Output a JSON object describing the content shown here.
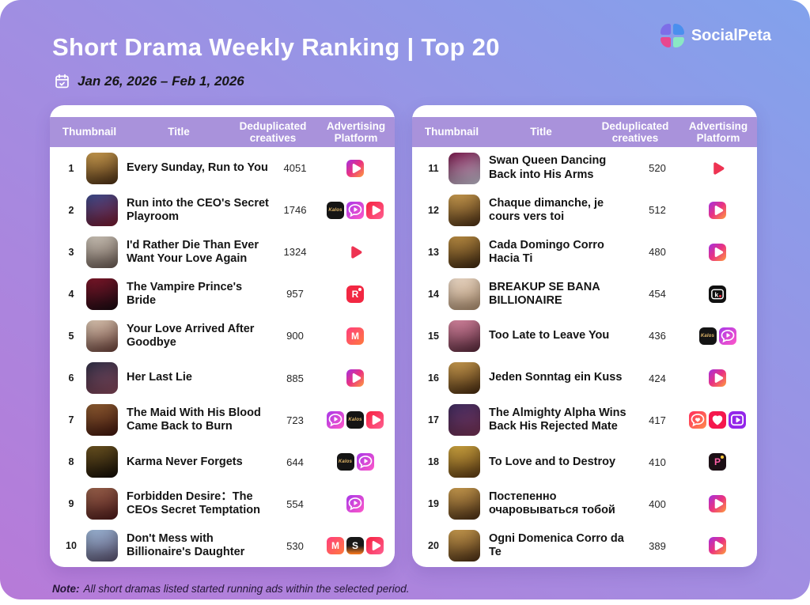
{
  "header": {
    "title": "Short Drama Weekly Ranking | Top 20",
    "date_range": "Jan 26, 2026 – Feb 1, 2026",
    "brand": "SocialPeta"
  },
  "note": {
    "label": "Note:",
    "text": "All short dramas listed started running ads within the selected period."
  },
  "colors": {
    "bg_gradient": [
      "#82a2ec",
      "#a18ee2",
      "#b77ad8"
    ],
    "table_header": "#a992db",
    "card_bg": "#ffffff",
    "logo_quadrants": [
      "#7d6ee8",
      "#4a8fee",
      "#e8478f",
      "#8ae8c4"
    ]
  },
  "platform_icons": {
    "gradient_play": {
      "desc": "purple-pink-orange gradient square with white play",
      "glyph": "play",
      "bg": [
        "#a32fe0",
        "#ea3380",
        "#ff9d3c"
      ]
    },
    "kalos": {
      "desc": "black square with gold Kalos wordmark",
      "glyph": "text",
      "text": "Kalos",
      "text_color": "#e2b86a",
      "bg": [
        "#141414"
      ]
    },
    "bubble_play": {
      "desc": "purple-pink gradient square, white chat bubble with play",
      "glyph": "bubble-play",
      "bg": [
        "#a838e8",
        "#ff57c8"
      ]
    },
    "red_play": {
      "desc": "red-pink square with white play",
      "glyph": "play",
      "bg": [
        "#f5203e",
        "#ff5f90"
      ]
    },
    "play_triangle": {
      "desc": "standalone rounded red play triangle",
      "glyph": "triangle",
      "fill": "#ee3352",
      "bg": []
    },
    "reelshort_r": {
      "desc": "red square with white R and small dot",
      "glyph": "text",
      "text": "R",
      "text_color": "#ffffff",
      "dot": "#ffffff",
      "bg": [
        "#f22742"
      ]
    },
    "m_grad": {
      "desc": "pink-orange gradient square with white M",
      "glyph": "text",
      "text": "M",
      "text_color": "#ffffff",
      "bg": [
        "#ff3d7e",
        "#ff7a3d"
      ]
    },
    "s_tv": {
      "desc": "black and orange square with white S",
      "glyph": "text",
      "text": "S",
      "text_color": "#ffffff",
      "dir": "180deg",
      "bg": [
        "#181818",
        "#181818",
        "#ff7d1f"
      ]
    },
    "kuku_k": {
      "desc": "black square, white frame with k and red dot",
      "glyph": "kuku",
      "dot": "#f5283c",
      "bg": [
        "#101010"
      ]
    },
    "heart_bubble": {
      "desc": "red-orange gradient square, white bubble with heart",
      "glyph": "bubble-heart",
      "bg": [
        "#ff2d5e",
        "#ff8a4d"
      ]
    },
    "heart": {
      "desc": "red square with white heart",
      "glyph": "heart",
      "bg": [
        "#f5184d"
      ]
    },
    "purple_play": {
      "desc": "purple square, white frame with play",
      "glyph": "frame-play",
      "bg": [
        "#9326ea"
      ]
    },
    "p_badge": {
      "desc": "dark square with pink P and gold dot",
      "glyph": "text",
      "text": "P",
      "text_color": "#ff5fa8",
      "dot": "#ffc83c",
      "bg": [
        "#1c1016"
      ]
    }
  },
  "chart_data": {
    "type": "table",
    "title": "Short Drama Weekly Ranking | Top 20",
    "period": "Jan 26, 2026 – Feb 1, 2026",
    "columns": [
      "Thumbnail",
      "Title",
      "Deduplicated creatives",
      "Advertising Platform"
    ],
    "tables": [
      {
        "rows": [
          {
            "rank": "1",
            "title": "Every Sunday, Run to You",
            "creatives": 4051,
            "platforms": [
              "gradient_play"
            ],
            "thumb": [
              "#c79a4e",
              "#4a2e14"
            ]
          },
          {
            "rank": "2",
            "title": "Run into the CEO's Secret Playroom",
            "creatives": 1746,
            "platforms": [
              "kalos",
              "bubble_play",
              "red_play"
            ],
            "thumb": [
              "#3a4a8a",
              "#7a1a2e"
            ]
          },
          {
            "rank": "3",
            "title": "I'd Rather Die Than Ever Want Your Love Again",
            "creatives": 1324,
            "platforms": [
              "play_triangle"
            ],
            "thumb": [
              "#c8c0b4",
              "#6a5a52"
            ]
          },
          {
            "rank": "4",
            "title": "The Vampire Prince's Bride",
            "creatives": 957,
            "platforms": [
              "reelshort_r"
            ],
            "thumb": [
              "#7a1628",
              "#190a12"
            ]
          },
          {
            "rank": "5",
            "title": "Your Love Arrived After Goodbye",
            "creatives": 900,
            "platforms": [
              "m_grad"
            ],
            "thumb": [
              "#d8c4b0",
              "#6a4038"
            ]
          },
          {
            "rank": "6",
            "title": "Her Last Lie",
            "creatives": 885,
            "platforms": [
              "gradient_play"
            ],
            "thumb": [
              "#2e2e44",
              "#8a4a5e"
            ]
          },
          {
            "rank": "7",
            "title": "The Maid With His Blood Came Back to Burn",
            "creatives": 723,
            "platforms": [
              "bubble_play",
              "kalos",
              "red_play"
            ],
            "thumb": [
              "#8a5a30",
              "#40160e"
            ]
          },
          {
            "rank": "8",
            "title": "Karma Never Forgets",
            "creatives": 644,
            "platforms": [
              "kalos",
              "bubble_play"
            ],
            "thumb": [
              "#6a5220",
              "#120c06"
            ]
          },
          {
            "rank": "9",
            "title": "Forbidden Desire：The CEOs Secret Temptation",
            "creatives": 554,
            "platforms": [
              "bubble_play"
            ],
            "thumb": [
              "#96604a",
              "#4e1a1a"
            ]
          },
          {
            "rank": "10",
            "title": "Don't Mess with Billionaire's Daughter",
            "creatives": 530,
            "platforms": [
              "m_grad",
              "s_tv",
              "red_play"
            ],
            "thumb": [
              "#9ab4d4",
              "#5a5270"
            ]
          }
        ]
      },
      {
        "rows": [
          {
            "rank": "11",
            "title": "Swan Queen Dancing Back into His Arms",
            "creatives": 520,
            "platforms": [
              "play_triangle"
            ],
            "thumb": [
              "#77184a",
              "#c9c6d6"
            ]
          },
          {
            "rank": "12",
            "title": "Chaque dimanche, je cours vers toi",
            "creatives": 512,
            "platforms": [
              "gradient_play"
            ],
            "thumb": [
              "#c79a4e",
              "#4a2e14"
            ]
          },
          {
            "rank": "13",
            "title": "Cada Domingo Corro Hacia Ti",
            "creatives": 480,
            "platforms": [
              "gradient_play"
            ],
            "thumb": [
              "#b98c42",
              "#3c2610"
            ]
          },
          {
            "rank": "14",
            "title": "BREAKUP SE BANA BILLIONAIRE",
            "creatives": 454,
            "platforms": [
              "kuku_k"
            ],
            "thumb": [
              "#e8d6c4",
              "#b09070"
            ]
          },
          {
            "rank": "15",
            "title": "Too Late to Leave You",
            "creatives": 436,
            "platforms": [
              "kalos",
              "bubble_play"
            ],
            "thumb": [
              "#d4849e",
              "#58283a"
            ]
          },
          {
            "rank": "16",
            "title": "Jeden Sonntag ein Kuss",
            "creatives": 424,
            "platforms": [
              "gradient_play"
            ],
            "thumb": [
              "#c79a4e",
              "#45290f"
            ]
          },
          {
            "rank": "17",
            "title": "The Almighty Alpha Wins Back His Rejected Mate",
            "creatives": 417,
            "platforms": [
              "heart_bubble",
              "heart",
              "purple_play"
            ],
            "thumb": [
              "#3c2a5c",
              "#7a3458"
            ]
          },
          {
            "rank": "18",
            "title": "To Love and to Destroy",
            "creatives": 410,
            "platforms": [
              "p_badge"
            ],
            "thumb": [
              "#caa23e",
              "#5c3a14"
            ]
          },
          {
            "rank": "19",
            "title": "Постепенно очаровываться тобой",
            "creatives": 400,
            "platforms": [
              "gradient_play"
            ],
            "thumb": [
              "#c79a4e",
              "#4a2e14"
            ]
          },
          {
            "rank": "20",
            "title": "Ogni Domenica Corro da Te",
            "creatives": 389,
            "platforms": [
              "gradient_play"
            ],
            "thumb": [
              "#c79a4e",
              "#4a2e14"
            ]
          }
        ]
      }
    ]
  }
}
